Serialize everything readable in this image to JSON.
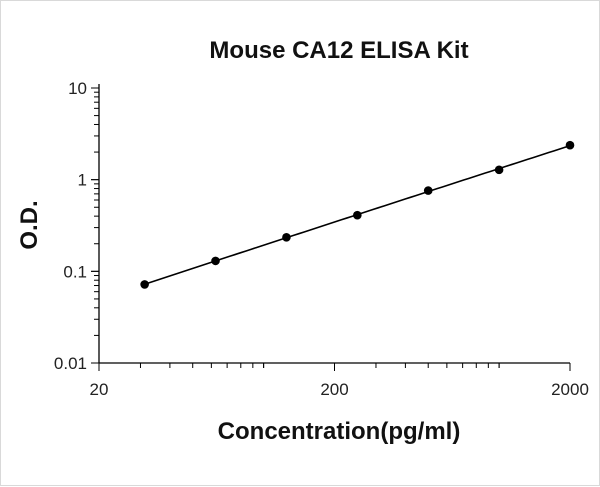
{
  "chart_data": {
    "type": "scatter",
    "title": "Mouse CA12 ELISA Kit",
    "xlabel": "Concentration(pg/ml)",
    "ylabel": "O.D.",
    "x_scale": "log",
    "y_scale": "log",
    "xlim": [
      20,
      2000
    ],
    "ylim": [
      0.01,
      10
    ],
    "x_ticks": [
      20,
      200,
      2000
    ],
    "x_tick_labels": [
      "20",
      "200",
      "2000"
    ],
    "y_ticks": [
      0.01,
      0.1,
      1,
      10
    ],
    "y_tick_labels": [
      "0.01",
      "0.1",
      "1",
      "10"
    ],
    "grid": false,
    "legend": "none",
    "trendline": true,
    "series": [
      {
        "x": [
          31.25,
          62.5,
          125,
          250,
          500,
          1000,
          2000
        ],
        "y": [
          0.072,
          0.13,
          0.235,
          0.41,
          0.76,
          1.28,
          2.38
        ]
      }
    ],
    "colors": {
      "marker": "#000000",
      "line": "#000000",
      "axis": "#000000"
    }
  }
}
